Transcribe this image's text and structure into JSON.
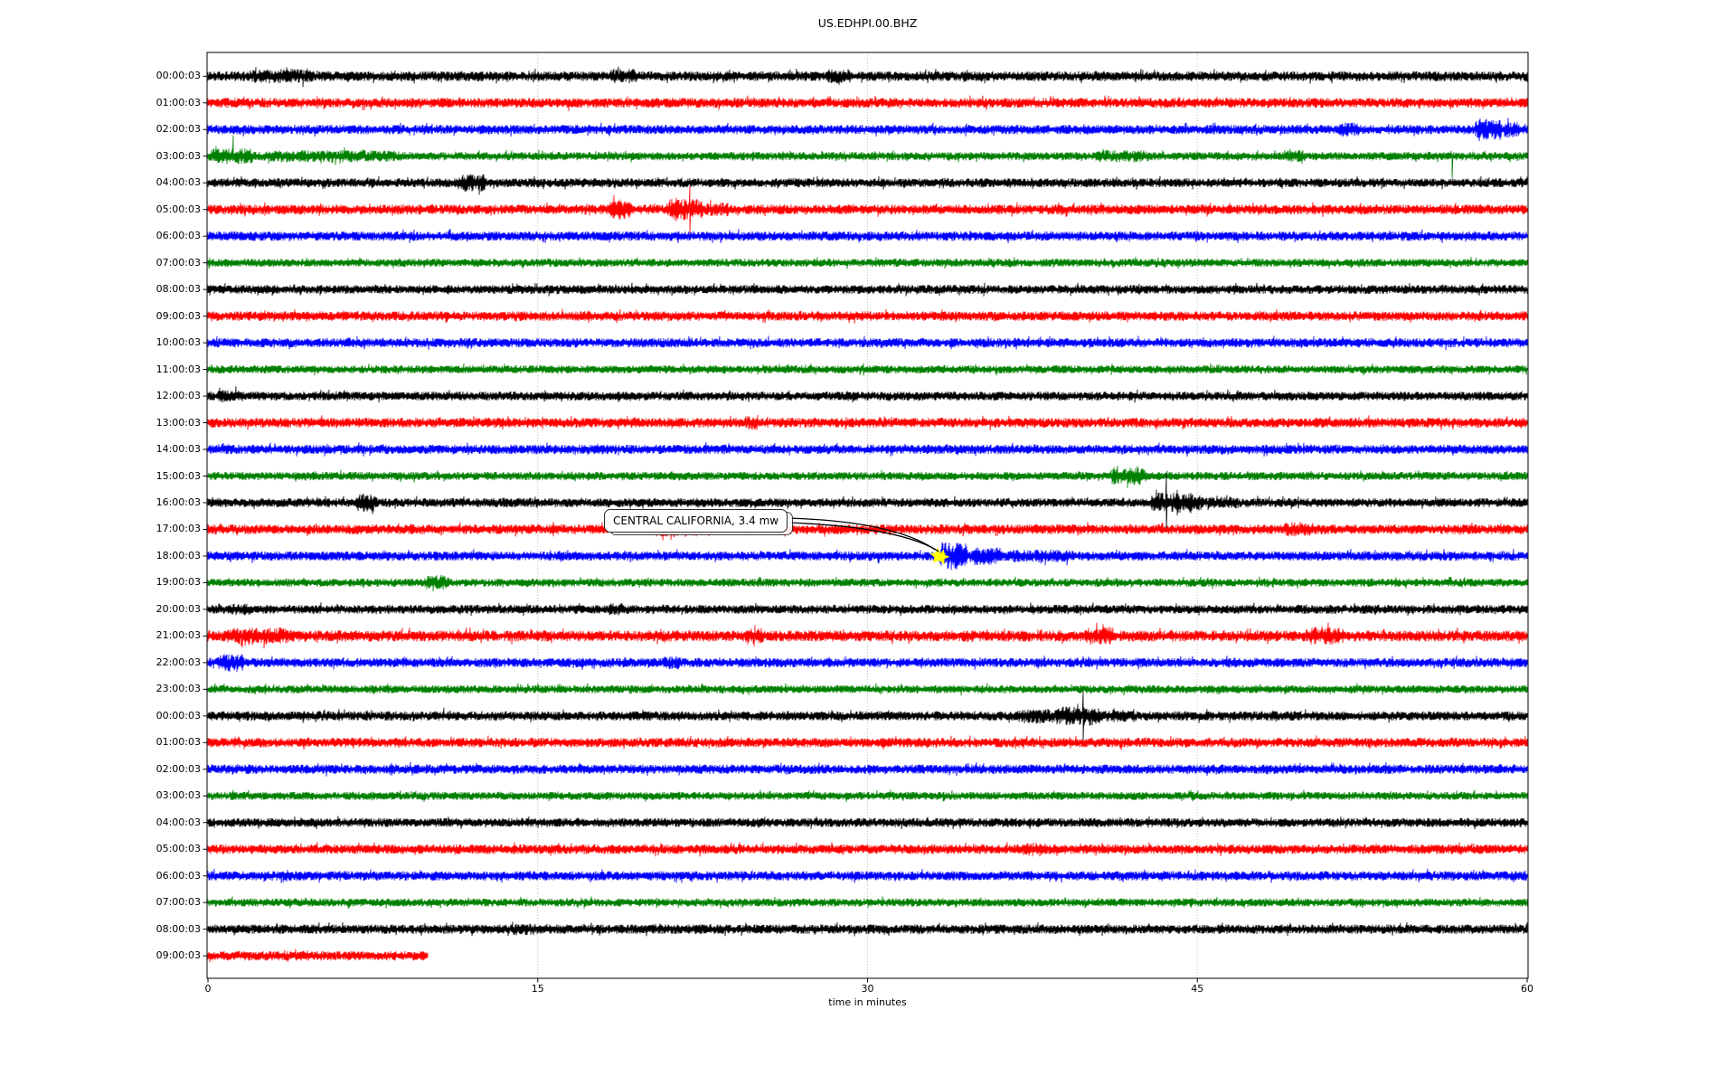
{
  "figure": {
    "title": "US.EDHPI.00.BHZ",
    "xlabel": "time in minutes",
    "background": "#ffffff",
    "frame_color": "#000000",
    "grid_color": "#bbbbbb"
  },
  "annotation": {
    "text": "CENTRAL CALIFORNIA, 3.4 mw",
    "row_label": "18:00:03",
    "row_index": 18,
    "event_minute": 33.2,
    "marker": "yellow-star",
    "marker_color": "#ffff00"
  },
  "chart_data": {
    "type": "line",
    "subtype": "helicorder-dayplot",
    "title": "US.EDHPI.00.BHZ",
    "xlabel": "time in minutes",
    "x_range": [
      0,
      60
    ],
    "x_ticks": [
      0,
      15,
      30,
      45,
      60
    ],
    "grid": "vertical-dotted",
    "legend": "none",
    "minutes_per_row": 60,
    "palette": {
      "black": "#000000",
      "red": "#ff0000",
      "blue": "#0000ff",
      "green": "#008000"
    },
    "rows": [
      {
        "label": "00:00:03",
        "color": "black",
        "end_min": 60,
        "amp": 4.6,
        "bursts": [
          [
            1.8,
            4.8,
            1.5
          ],
          [
            18.2,
            19.6,
            1.5
          ],
          [
            28.1,
            29.3,
            1.45
          ]
        ],
        "spikes": []
      },
      {
        "label": "01:00:03",
        "color": "red",
        "end_min": 60,
        "amp": 4.6,
        "bursts": [
          [
            4.8,
            5.4,
            1.35
          ]
        ],
        "spikes": [
          [
            16.4,
            9,
            -1
          ]
        ]
      },
      {
        "label": "02:00:03",
        "color": "blue",
        "end_min": 60,
        "amp": 4.4,
        "bursts": [
          [
            51.4,
            52.4,
            1.5
          ],
          [
            57.6,
            58.9,
            2.5
          ],
          [
            58.9,
            59.7,
            1.7
          ]
        ],
        "spikes": []
      },
      {
        "label": "03:00:03",
        "color": "green",
        "end_min": 60,
        "amp": 3.9,
        "bursts": [
          [
            0.0,
            2.2,
            1.9
          ],
          [
            2.2,
            9.0,
            1.45
          ],
          [
            40.3,
            42.9,
            1.5
          ],
          [
            49.0,
            50.0,
            1.4
          ]
        ],
        "spikes": [
          [
            0.35,
            11,
            1
          ],
          [
            1.15,
            23,
            1
          ],
          [
            56.6,
            24,
            -1
          ]
        ]
      },
      {
        "label": "04:00:03",
        "color": "black",
        "end_min": 60,
        "amp": 4.2,
        "bursts": [
          [
            11.3,
            12.7,
            1.9
          ]
        ],
        "spikes": [
          [
            11.9,
            8,
            0
          ]
        ]
      },
      {
        "label": "05:00:03",
        "color": "red",
        "end_min": 60,
        "amp": 4.6,
        "bursts": [
          [
            18.2,
            19.3,
            2.0
          ],
          [
            20.8,
            22.6,
            2.2
          ],
          [
            22.6,
            23.8,
            1.4
          ]
        ],
        "spikes": [
          [
            18.7,
            11,
            0
          ],
          [
            21.3,
            13,
            0
          ],
          [
            21.9,
            26,
            0
          ]
        ]
      },
      {
        "label": "06:00:03",
        "color": "blue",
        "end_min": 60,
        "amp": 4.4,
        "bursts": [],
        "spikes": []
      },
      {
        "label": "07:00:03",
        "color": "green",
        "end_min": 60,
        "amp": 3.8,
        "bursts": [],
        "spikes": []
      },
      {
        "label": "08:00:03",
        "color": "black",
        "end_min": 60,
        "amp": 4.2,
        "bursts": [],
        "spikes": []
      },
      {
        "label": "09:00:03",
        "color": "red",
        "end_min": 60,
        "amp": 4.5,
        "bursts": [],
        "spikes": []
      },
      {
        "label": "10:00:03",
        "color": "blue",
        "end_min": 60,
        "amp": 4.4,
        "bursts": [],
        "spikes": []
      },
      {
        "label": "11:00:03",
        "color": "green",
        "end_min": 60,
        "amp": 3.8,
        "bursts": [],
        "spikes": []
      },
      {
        "label": "12:00:03",
        "color": "black",
        "end_min": 60,
        "amp": 4.2,
        "bursts": [
          [
            0.4,
            1.4,
            1.45
          ]
        ],
        "spikes": []
      },
      {
        "label": "13:00:03",
        "color": "red",
        "end_min": 60,
        "amp": 4.6,
        "bursts": [
          [
            24.4,
            25.1,
            1.5
          ]
        ],
        "spikes": []
      },
      {
        "label": "14:00:03",
        "color": "blue",
        "end_min": 60,
        "amp": 4.4,
        "bursts": [],
        "spikes": []
      },
      {
        "label": "15:00:03",
        "color": "green",
        "end_min": 60,
        "amp": 3.9,
        "bursts": [
          [
            41.0,
            42.7,
            2.1
          ]
        ],
        "spikes": []
      },
      {
        "label": "16:00:03",
        "color": "black",
        "end_min": 60,
        "amp": 4.2,
        "bursts": [
          [
            6.7,
            7.7,
            2.0
          ],
          [
            42.8,
            45.3,
            2.3
          ],
          [
            45.3,
            47.0,
            1.3
          ]
        ],
        "spikes": [
          [
            43.6,
            33,
            0
          ],
          [
            44.1,
            14,
            0
          ]
        ]
      },
      {
        "label": "17:00:03",
        "color": "red",
        "end_min": 60,
        "amp": 4.6,
        "bursts": [
          [
            20.4,
            22.4,
            1.6
          ],
          [
            48.9,
            50.4,
            1.5
          ]
        ],
        "spikes": []
      },
      {
        "label": "18:00:03",
        "color": "blue",
        "end_min": 60,
        "amp": 4.4,
        "bursts": [
          [
            33.25,
            34.6,
            3.0
          ],
          [
            34.6,
            36.2,
            1.9
          ],
          [
            36.2,
            39.5,
            1.35
          ]
        ],
        "spikes": []
      },
      {
        "label": "19:00:03",
        "color": "green",
        "end_min": 60,
        "amp": 3.8,
        "bursts": [
          [
            9.8,
            11.0,
            1.9
          ]
        ],
        "spikes": []
      },
      {
        "label": "20:00:03",
        "color": "black",
        "end_min": 60,
        "amp": 4.2,
        "bursts": [
          [
            1.0,
            2.0,
            1.3
          ],
          [
            18.2,
            18.9,
            1.5
          ]
        ],
        "spikes": []
      },
      {
        "label": "21:00:03",
        "color": "red",
        "end_min": 60,
        "amp": 5.2,
        "bursts": [
          [
            0.7,
            3.9,
            1.5
          ],
          [
            24.4,
            25.3,
            1.4
          ],
          [
            39.9,
            41.4,
            1.6
          ],
          [
            49.9,
            51.7,
            1.6
          ]
        ],
        "spikes": [
          [
            2.0,
            10,
            -1
          ]
        ]
      },
      {
        "label": "22:00:03",
        "color": "blue",
        "end_min": 60,
        "amp": 4.4,
        "bursts": [
          [
            0.4,
            1.7,
            1.9
          ],
          [
            20.7,
            21.5,
            1.4
          ]
        ],
        "spikes": [
          [
            0.95,
            9,
            0
          ]
        ]
      },
      {
        "label": "23:00:03",
        "color": "green",
        "end_min": 60,
        "amp": 3.8,
        "bursts": [],
        "spikes": []
      },
      {
        "label": "00:00:03",
        "color": "black",
        "end_min": 60,
        "amp": 4.4,
        "bursts": [
          [
            36.8,
            38.4,
            1.6
          ],
          [
            38.4,
            40.7,
            2.0
          ],
          [
            40.7,
            42.0,
            1.3
          ]
        ],
        "spikes": [
          [
            10.75,
            9,
            1
          ],
          [
            39.8,
            27,
            0
          ]
        ]
      },
      {
        "label": "01:00:03",
        "color": "red",
        "end_min": 60,
        "amp": 4.5,
        "bursts": [],
        "spikes": []
      },
      {
        "label": "02:00:03",
        "color": "blue",
        "end_min": 60,
        "amp": 4.4,
        "bursts": [],
        "spikes": []
      },
      {
        "label": "03:00:03",
        "color": "green",
        "end_min": 60,
        "amp": 3.8,
        "bursts": [],
        "spikes": []
      },
      {
        "label": "04:00:03",
        "color": "black",
        "end_min": 60,
        "amp": 4.2,
        "bursts": [],
        "spikes": []
      },
      {
        "label": "05:00:03",
        "color": "red",
        "end_min": 60,
        "amp": 4.5,
        "bursts": [
          [
            37.0,
            38.1,
            1.5
          ]
        ],
        "spikes": []
      },
      {
        "label": "06:00:03",
        "color": "blue",
        "end_min": 60,
        "amp": 4.4,
        "bursts": [],
        "spikes": []
      },
      {
        "label": "07:00:03",
        "color": "green",
        "end_min": 60,
        "amp": 3.8,
        "bursts": [],
        "spikes": []
      },
      {
        "label": "08:00:03",
        "color": "black",
        "end_min": 60,
        "amp": 4.4,
        "bursts": [
          [
            13.8,
            15.2,
            1.3
          ]
        ],
        "spikes": []
      },
      {
        "label": "09:00:03",
        "color": "red",
        "end_min": 10.0,
        "amp": 4.5,
        "bursts": [],
        "spikes": []
      }
    ]
  }
}
